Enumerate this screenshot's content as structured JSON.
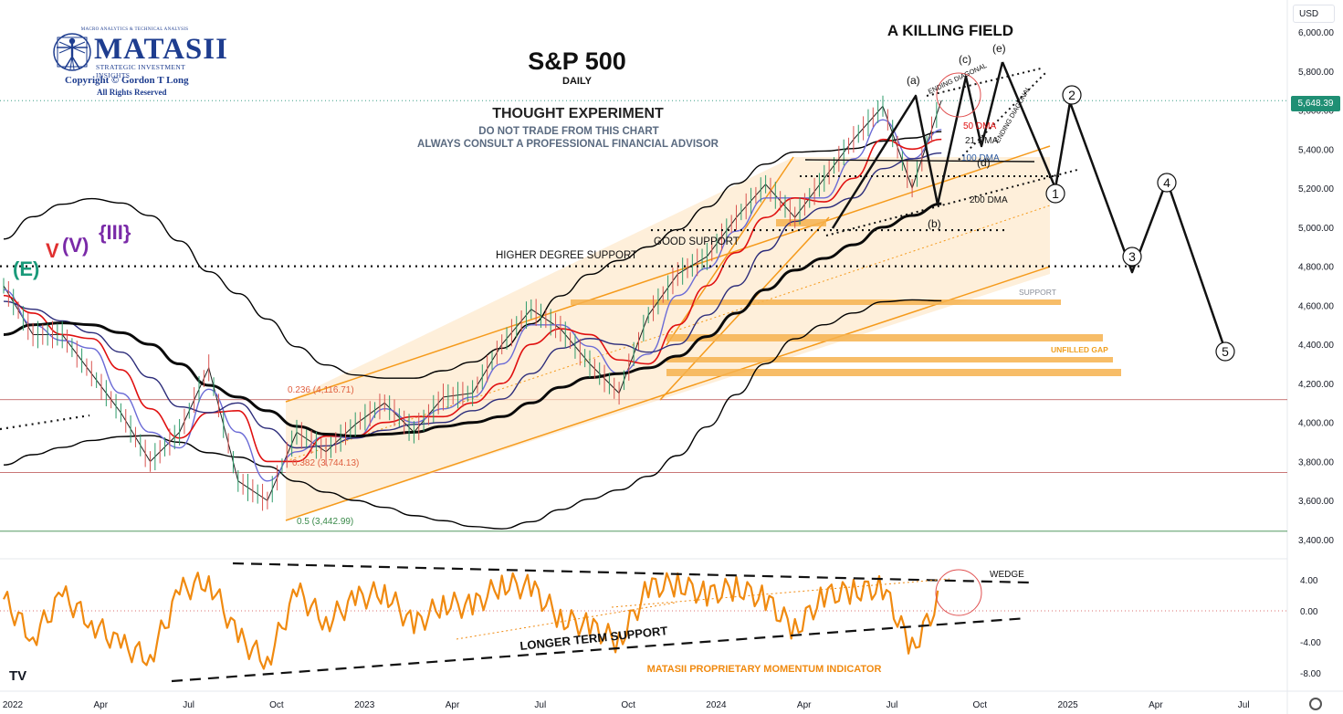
{
  "logo": {
    "top_line": "MACRO ANALYTICS & TECHNICAL ANALYSIS",
    "name": "MATASII",
    "subtitle": "STRATEGIC INVESTMENT INSIGHTS",
    "copyright": "Copyright © Gordon T Long",
    "rights": "All Rights Reserved"
  },
  "currency_button": "USD",
  "colors": {
    "price": "#1f1f1f",
    "dma21": "#6b6bd6",
    "dma50": "#e01010",
    "dma100": "#2c2c7a",
    "dma200": "#0a0a0a",
    "bands": "#000000",
    "channel": "#f59a1b",
    "channel_fill": "#fde7c6",
    "support_bar": "#f6b24e",
    "momentum": "#f08a10",
    "hline_red": "#b84a4a",
    "hline_green": "#3a8a4a",
    "last_price_bg": "#1f8f74"
  },
  "chart_data": [
    {
      "type": "line",
      "title": "S&P 500",
      "subtitle": "DAILY",
      "headline": "A KILLING FIELD",
      "notes": [
        "THOUGHT EXPERIMENT",
        "DO NOT TRADE FROM THIS CHART",
        "ALWAYS CONSULT A PROFESSIONAL FINANCIAL ADVISOR"
      ],
      "currency": "USD",
      "ylim": [
        3300,
        6100
      ],
      "y_ticks": [
        "6,000.00",
        "5,800.00",
        "5,600.00",
        "5,400.00",
        "5,200.00",
        "5,000.00",
        "4,800.00",
        "4,600.00",
        "4,400.00",
        "4,200.00",
        "4,000.00",
        "3,800.00",
        "3,600.00",
        "3,400.00"
      ],
      "last_price": "5,648.39",
      "x": [
        "2022-01",
        "2022-02",
        "2022-03",
        "2022-04",
        "2022-05",
        "2022-06",
        "2022-07",
        "2022-08",
        "2022-09",
        "2022-10",
        "2022-11",
        "2022-12",
        "2023-01",
        "2023-02",
        "2023-03",
        "2023-04",
        "2023-05",
        "2023-06",
        "2023-07",
        "2023-08",
        "2023-09",
        "2023-10",
        "2023-11",
        "2023-12",
        "2024-01",
        "2024-02",
        "2024-03",
        "2024-04",
        "2024-05",
        "2024-06",
        "2024-07",
        "2024-08",
        "2024-09"
      ],
      "series": [
        {
          "name": "S&P 500",
          "values": [
            4700,
            4450,
            4450,
            4250,
            4050,
            3800,
            3950,
            4280,
            3700,
            3600,
            3950,
            3850,
            3990,
            4100,
            3950,
            4130,
            4150,
            4400,
            4580,
            4480,
            4300,
            4150,
            4550,
            4760,
            4850,
            5050,
            5220,
            5050,
            5250,
            5450,
            5620,
            5200,
            5650
          ]
        },
        {
          "name": "21 DMA",
          "values": [
            4680,
            4500,
            4420,
            4380,
            4150,
            3950,
            3870,
            4170,
            3950,
            3700,
            3850,
            3930,
            3920,
            4070,
            4000,
            4070,
            4130,
            4300,
            4500,
            4500,
            4390,
            4250,
            4350,
            4650,
            4790,
            4980,
            5150,
            5150,
            5150,
            5350,
            5550,
            5350,
            5500
          ]
        },
        {
          "name": "50 DMA",
          "values": [
            4650,
            4560,
            4450,
            4430,
            4270,
            4070,
            3920,
            4050,
            4060,
            3800,
            3800,
            3930,
            3930,
            4000,
            4030,
            4030,
            4100,
            4200,
            4400,
            4480,
            4450,
            4320,
            4300,
            4500,
            4700,
            4870,
            5050,
            5150,
            5130,
            5250,
            5450,
            5400,
            5450
          ]
        },
        {
          "name": "100 DMA",
          "values": [
            4620,
            4580,
            4520,
            4460,
            4360,
            4230,
            4080,
            4050,
            4100,
            3970,
            3870,
            3880,
            3920,
            3960,
            3990,
            4000,
            4060,
            4120,
            4250,
            4380,
            4430,
            4400,
            4360,
            4400,
            4550,
            4700,
            4880,
            5030,
            5100,
            5150,
            5300,
            5350,
            5380
          ]
        },
        {
          "name": "200 DMA",
          "values": [
            4450,
            4500,
            4510,
            4500,
            4460,
            4400,
            4300,
            4190,
            4130,
            4060,
            3980,
            3940,
            3930,
            3940,
            3950,
            3980,
            4000,
            4030,
            4100,
            4180,
            4230,
            4250,
            4280,
            4340,
            4440,
            4560,
            4680,
            4780,
            4840,
            4910,
            5000,
            5060,
            5120
          ]
        }
      ],
      "fibonacci": [
        {
          "label": "0.236 (4,116.71)",
          "value": 4116.71
        },
        {
          "label": "0.382 (3,744.13)",
          "value": 3744.13
        },
        {
          "label": "0.5 (3,442.99)",
          "value": 3442.99
        }
      ],
      "annotations": [
        "HIGHER DEGREE SUPPORT",
        "GOOD SUPPORT",
        "SUPPORT",
        "UNFILLED GAP",
        "ENDING DIAGONAL",
        "ENDING DIAGONAL",
        "50 DMA",
        "21 DMA",
        "100 DMA",
        "200 DMA"
      ],
      "wave_labels": [
        "(a)",
        "(b)",
        "(c)",
        "(d)",
        "(e)",
        "1",
        "2",
        "3",
        "4",
        "5",
        "(E)",
        "V",
        "(V)",
        "{III}"
      ],
      "projection": [
        {
          "label": "1",
          "value": 5200
        },
        {
          "label": "2",
          "value": 5640
        },
        {
          "label": "3",
          "value": 4770
        },
        {
          "label": "4",
          "value": 5240
        },
        {
          "label": "5",
          "value": 4370
        }
      ]
    },
    {
      "type": "line",
      "title": "MATASII PROPRIETARY MOMENTUM INDICATOR",
      "ylim": [
        -9,
        5.5
      ],
      "y_ticks": [
        "4.00",
        "0.00",
        "-4.00",
        "-8.00"
      ],
      "annotations": [
        "WEDGE",
        "LONGER TERM SUPPORT"
      ],
      "x": [
        "2022-01",
        "2022-02",
        "2022-03",
        "2022-04",
        "2022-05",
        "2022-06",
        "2022-07",
        "2022-08",
        "2022-09",
        "2022-10",
        "2022-11",
        "2022-12",
        "2023-01",
        "2023-02",
        "2023-03",
        "2023-04",
        "2023-05",
        "2023-06",
        "2023-07",
        "2023-08",
        "2023-09",
        "2023-10",
        "2023-11",
        "2023-12",
        "2024-01",
        "2024-02",
        "2024-03",
        "2024-04",
        "2024-05",
        "2024-06",
        "2024-07",
        "2024-08",
        "2024-09"
      ],
      "series": [
        {
          "name": "Momentum",
          "values": [
            1.5,
            -3.5,
            2.0,
            -1.5,
            -4.5,
            -6.0,
            2.5,
            4.0,
            -3.5,
            -6.5,
            2.5,
            -1.5,
            1.5,
            2.5,
            -2.0,
            1.0,
            0.5,
            3.5,
            3.0,
            -1.0,
            -2.0,
            -4.0,
            3.0,
            3.5,
            2.0,
            3.0,
            1.5,
            -2.5,
            2.0,
            2.5,
            3.0,
            -5.0,
            2.0
          ]
        }
      ]
    }
  ],
  "x_axis": {
    "labels": [
      "2022",
      "Apr",
      "Jul",
      "Oct",
      "2023",
      "Apr",
      "Jul",
      "Oct",
      "2024",
      "Apr",
      "Jul",
      "Oct",
      "2025",
      "Apr",
      "Jul"
    ]
  },
  "tv_logo": "TV"
}
